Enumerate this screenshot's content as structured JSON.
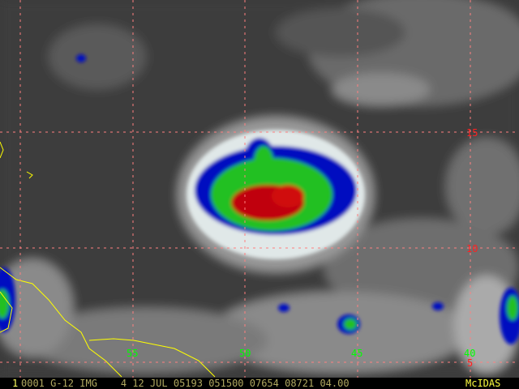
{
  "image": {
    "type": "satellite-infrared-enhanced",
    "colors": {
      "background": "#3a3a3a",
      "grid": "#ff8080",
      "coastline": "#ffff00",
      "lon_label": "#00ff00",
      "lat_label": "#ff2020",
      "enhance_blue": "#0010c0",
      "enhance_green": "#20c020",
      "enhance_red": "#c00010"
    }
  },
  "grid": {
    "longitude_labels": [
      "55",
      "50",
      "45",
      "40"
    ],
    "latitude_labels": [
      "15",
      "10",
      "5"
    ]
  },
  "status_bar": {
    "frame_number": "1",
    "info": "0001 G-12 IMG    4 12 JUL 05193 051500 07654 08721 04.00",
    "brand": "McIDAS"
  }
}
